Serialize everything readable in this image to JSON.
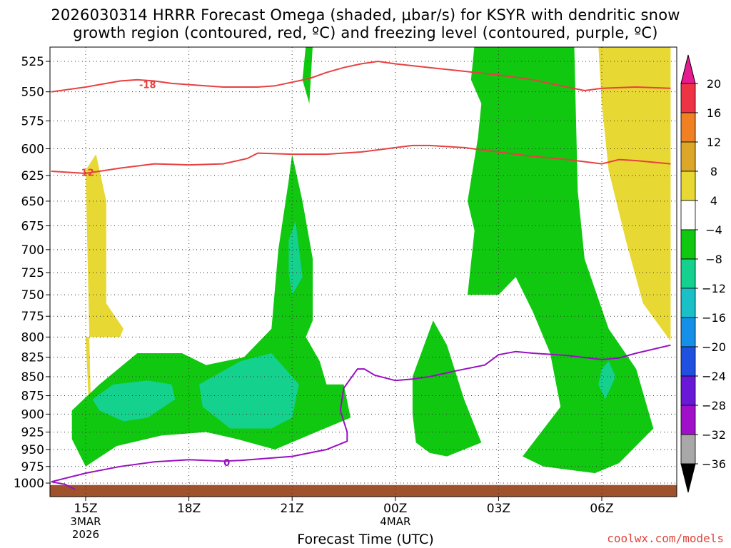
{
  "title": {
    "line1": "2026030314 HRRR Forecast Omega (shaded, μbar/s) for KSYR with dendritic snow",
    "line2": "growth region (contoured, red, ºC) and freezing level (contoured, purple, ºC)"
  },
  "credit": "coolwx.com/models",
  "chart_data": {
    "type": "heatmap",
    "title": "2026030314 HRRR Forecast Omega (shaded, μbar/s) for KSYR with dendritic snow growth region (contoured, red, ºC) and freezing level (contoured, purple, ºC)",
    "xlabel": "Forecast Time (UTC)",
    "ylabel": "",
    "x_ticks": [
      {
        "label": "15Z",
        "sub1": "3MAR",
        "sub2": "2026",
        "hour": 15
      },
      {
        "label": "18Z",
        "sub1": "",
        "sub2": "",
        "hour": 18
      },
      {
        "label": "21Z",
        "sub1": "",
        "sub2": "",
        "hour": 21
      },
      {
        "label": "00Z",
        "sub1": "4MAR",
        "sub2": "",
        "hour": 24
      },
      {
        "label": "03Z",
        "sub1": "",
        "sub2": "",
        "hour": 27
      },
      {
        "label": "06Z",
        "sub1": "",
        "sub2": "",
        "hour": 30
      }
    ],
    "xlim": [
      14,
      32
    ],
    "y_ticks": [
      525,
      550,
      575,
      600,
      625,
      650,
      675,
      700,
      725,
      750,
      775,
      800,
      825,
      850,
      875,
      900,
      925,
      950,
      975,
      1000
    ],
    "ylim": [
      1010,
      512
    ],
    "y_scale": "log-pressure (inverted)",
    "grid": true,
    "colorbar": {
      "labels": [
        "20",
        "16",
        "12",
        "8",
        "4",
        "−4",
        "−8",
        "−12",
        "−16",
        "−20",
        "−24",
        "−28",
        "−32",
        "−36"
      ],
      "bands": [
        {
          "from": 20,
          "to": 16,
          "color": "#ee3345"
        },
        {
          "from": 16,
          "to": 12,
          "color": "#f08022"
        },
        {
          "from": 12,
          "to": 8,
          "color": "#dca628"
        },
        {
          "from": 8,
          "to": 4,
          "color": "#e8d833"
        },
        {
          "from": 4,
          "to": -4,
          "color": "#ffffff"
        },
        {
          "from": -4,
          "to": -8,
          "color": "#10c810"
        },
        {
          "from": -8,
          "to": -12,
          "color": "#14d18e"
        },
        {
          "from": -12,
          "to": -16,
          "color": "#1ac0c8"
        },
        {
          "from": -16,
          "to": -20,
          "color": "#1490e8"
        },
        {
          "from": -20,
          "to": -24,
          "color": "#2050e0"
        },
        {
          "from": -24,
          "to": -28,
          "color": "#6a18d8"
        },
        {
          "from": -28,
          "to": -32,
          "color": "#a010c8"
        },
        {
          "from": -32,
          "to": -36,
          "color": "#a8a8a8"
        }
      ],
      "over_color": "#e61b8f",
      "under_color": "#000000"
    },
    "shaded_regions": [
      {
        "name": "omega-positive-4-8",
        "color": "#e8d833",
        "points": [
          [
            15.2,
            1000
          ],
          [
            15.0,
            620
          ],
          [
            15.3,
            605
          ],
          [
            15.6,
            650
          ],
          [
            15.6,
            760
          ],
          [
            16.1,
            790
          ],
          [
            16.0,
            800
          ],
          [
            15.0,
            800
          ]
        ]
      },
      {
        "name": "omega-positive-4-8",
        "color": "#e8d833",
        "points": [
          [
            30.8,
            512
          ],
          [
            32,
            512
          ],
          [
            32,
            805
          ],
          [
            31.2,
            760
          ],
          [
            30.7,
            690
          ],
          [
            30.2,
            620
          ],
          [
            30.0,
            560
          ],
          [
            29.9,
            512
          ]
        ]
      },
      {
        "name": "omega-negative-4-8",
        "color": "#10c810",
        "points": [
          [
            14.6,
            895
          ],
          [
            15.4,
            860
          ],
          [
            16.5,
            820
          ],
          [
            17.8,
            820
          ],
          [
            18.5,
            835
          ],
          [
            19.6,
            825
          ],
          [
            20.4,
            790
          ],
          [
            20.6,
            700
          ],
          [
            20.9,
            630
          ],
          [
            21.0,
            605
          ],
          [
            21.3,
            650
          ],
          [
            21.6,
            710
          ],
          [
            21.6,
            780
          ],
          [
            21.4,
            800
          ],
          [
            21.8,
            830
          ],
          [
            22.0,
            860
          ],
          [
            22.5,
            860
          ],
          [
            22.7,
            905
          ],
          [
            21.7,
            925
          ],
          [
            20.5,
            950
          ],
          [
            19.4,
            935
          ],
          [
            18.5,
            925
          ],
          [
            17.2,
            930
          ],
          [
            15.9,
            945
          ],
          [
            15.0,
            975
          ],
          [
            14.6,
            935
          ]
        ]
      },
      {
        "name": "omega-negative-4-8",
        "color": "#10c810",
        "points": [
          [
            21.4,
            512
          ],
          [
            21.6,
            512
          ],
          [
            21.5,
            560
          ],
          [
            21.3,
            540
          ]
        ]
      },
      {
        "name": "omega-negative-4-8",
        "color": "#10c810",
        "points": [
          [
            24.6,
            940
          ],
          [
            25.0,
            955
          ],
          [
            25.5,
            960
          ],
          [
            26.5,
            940
          ],
          [
            26.0,
            880
          ],
          [
            25.5,
            810
          ],
          [
            25.1,
            780
          ],
          [
            24.5,
            850
          ],
          [
            24.5,
            900
          ]
        ]
      },
      {
        "name": "omega-negative-4-8",
        "color": "#10c810",
        "points": [
          [
            26.3,
            512
          ],
          [
            29.2,
            512
          ],
          [
            29.3,
            640
          ],
          [
            29.5,
            710
          ],
          [
            30.2,
            790
          ],
          [
            31.0,
            840
          ],
          [
            31.5,
            920
          ],
          [
            30.5,
            970
          ],
          [
            29.8,
            985
          ],
          [
            28.3,
            975
          ],
          [
            27.7,
            960
          ],
          [
            28.8,
            890
          ],
          [
            28.5,
            820
          ],
          [
            28.0,
            770
          ],
          [
            27.5,
            730
          ],
          [
            27.0,
            750
          ],
          [
            26.1,
            750
          ],
          [
            26.3,
            680
          ],
          [
            26.1,
            650
          ],
          [
            26.4,
            590
          ],
          [
            26.5,
            560
          ],
          [
            26.2,
            540
          ]
        ]
      },
      {
        "name": "omega-negative-8-12",
        "color": "#14d18e",
        "points": [
          [
            15.2,
            880
          ],
          [
            15.8,
            860
          ],
          [
            16.8,
            855
          ],
          [
            17.5,
            860
          ],
          [
            17.6,
            880
          ],
          [
            16.8,
            905
          ],
          [
            16.1,
            910
          ],
          [
            15.4,
            895
          ]
        ]
      },
      {
        "name": "omega-negative-8-12",
        "color": "#14d18e",
        "points": [
          [
            18.3,
            860
          ],
          [
            19.5,
            830
          ],
          [
            20.4,
            820
          ],
          [
            21.2,
            860
          ],
          [
            21.0,
            905
          ],
          [
            20.4,
            920
          ],
          [
            19.2,
            920
          ],
          [
            18.4,
            890
          ]
        ]
      },
      {
        "name": "omega-negative-8-12",
        "color": "#14d18e",
        "points": [
          [
            20.9,
            690
          ],
          [
            21.1,
            670
          ],
          [
            21.3,
            730
          ],
          [
            21.0,
            750
          ],
          [
            20.9,
            725
          ]
        ]
      },
      {
        "name": "omega-negative-8-12",
        "color": "#14d18e",
        "points": [
          [
            30.0,
            840
          ],
          [
            30.2,
            830
          ],
          [
            30.4,
            850
          ],
          [
            30.1,
            880
          ],
          [
            29.9,
            860
          ]
        ]
      }
    ],
    "series": [
      {
        "name": "dendritic-top-18C",
        "color": "#e84040",
        "label": "-18",
        "label_at": [
          16.8,
          544
        ],
        "points": [
          [
            14.0,
            550
          ],
          [
            15.0,
            546
          ],
          [
            16.0,
            541
          ],
          [
            16.5,
            540
          ],
          [
            17.0,
            541
          ],
          [
            17.5,
            543
          ],
          [
            18.0,
            544
          ],
          [
            19.0,
            546
          ],
          [
            20.0,
            546
          ],
          [
            20.5,
            545
          ],
          [
            21.0,
            542
          ],
          [
            21.5,
            539
          ],
          [
            22.0,
            534
          ],
          [
            22.5,
            530
          ],
          [
            23.0,
            527
          ],
          [
            23.5,
            525
          ],
          [
            24.0,
            527
          ],
          [
            25.0,
            530
          ],
          [
            26.0,
            533
          ],
          [
            27.0,
            536
          ],
          [
            28.0,
            540
          ],
          [
            29.0,
            546
          ],
          [
            29.5,
            549
          ],
          [
            30.0,
            547
          ],
          [
            31.0,
            546
          ],
          [
            32.0,
            547
          ]
        ]
      },
      {
        "name": "dendritic-bottom-12C",
        "color": "#e84040",
        "label": "-12",
        "label_at": [
          15.0,
          622
        ],
        "points": [
          [
            14.0,
            621
          ],
          [
            15.0,
            623
          ],
          [
            16.0,
            618
          ],
          [
            17.0,
            614
          ],
          [
            18.0,
            615
          ],
          [
            19.0,
            614
          ],
          [
            19.7,
            609
          ],
          [
            20.0,
            604
          ],
          [
            21.0,
            605
          ],
          [
            22.0,
            605
          ],
          [
            23.0,
            603
          ],
          [
            24.0,
            599
          ],
          [
            24.5,
            597
          ],
          [
            25.0,
            597
          ],
          [
            26.0,
            599
          ],
          [
            27.0,
            603
          ],
          [
            28.0,
            607
          ],
          [
            29.0,
            610
          ],
          [
            30.0,
            614
          ],
          [
            30.5,
            610
          ],
          [
            31.0,
            611
          ],
          [
            32.0,
            614
          ]
        ]
      },
      {
        "name": "freezing-level-0C",
        "color": "#9810c0",
        "label": "0",
        "label_at": [
          19.1,
          969
        ],
        "points": [
          [
            14.0,
            998
          ],
          [
            15.0,
            985
          ],
          [
            16.0,
            975
          ],
          [
            17.0,
            968
          ],
          [
            18.0,
            965
          ],
          [
            19.0,
            967
          ],
          [
            19.5,
            966
          ],
          [
            20.5,
            962
          ],
          [
            21.0,
            960
          ],
          [
            22.0,
            950
          ],
          [
            22.6,
            938
          ],
          [
            22.6,
            925
          ],
          [
            22.4,
            895
          ],
          [
            22.5,
            865
          ],
          [
            22.9,
            840
          ],
          [
            23.1,
            840
          ],
          [
            23.4,
            848
          ],
          [
            24.0,
            855
          ],
          [
            24.5,
            853
          ],
          [
            25.0,
            850
          ],
          [
            25.8,
            842
          ],
          [
            26.6,
            835
          ],
          [
            27.0,
            822
          ],
          [
            27.5,
            818
          ],
          [
            28.0,
            820
          ],
          [
            29.0,
            823
          ],
          [
            30.0,
            828
          ],
          [
            30.5,
            826
          ],
          [
            31.0,
            820
          ],
          [
            32.0,
            810
          ]
        ]
      },
      {
        "name": "freezing-level-0C-tail",
        "color": "#9810c0",
        "label": "",
        "label_at": null,
        "points": [
          [
            14.0,
            998
          ],
          [
            14.4,
            1002
          ],
          [
            14.7,
            1010
          ]
        ]
      }
    ],
    "terrain": {
      "color": "#a0522d",
      "top": 1003
    }
  }
}
